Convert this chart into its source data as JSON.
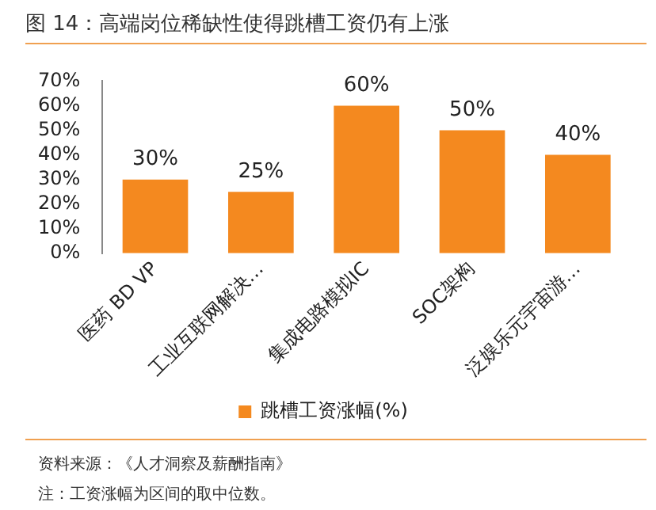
{
  "chart_data": {
    "type": "bar",
    "title": "图 14：高端岗位稀缺性使得跳槽工资仍有上涨",
    "categories": [
      "医药 BD VP",
      "工业互联网解决…",
      "集成电路模拟IC",
      "SOC架构",
      "泛娱乐元宇宙游…"
    ],
    "series": [
      {
        "name": "跳槽工资涨幅(%)",
        "color": "#f4891f",
        "values": [
          30,
          25,
          60,
          50,
          40
        ],
        "value_labels": [
          "30%",
          "25%",
          "60%",
          "50%",
          "40%"
        ]
      }
    ],
    "ylim": [
      0,
      70
    ],
    "yticks": [
      {
        "value": 0,
        "label": "0%"
      },
      {
        "value": 10,
        "label": "10%"
      },
      {
        "value": 20,
        "label": "20%"
      },
      {
        "value": 30,
        "label": "30%"
      },
      {
        "value": 40,
        "label": "40%"
      },
      {
        "value": 50,
        "label": "50%"
      },
      {
        "value": 60,
        "label": "60%"
      },
      {
        "value": 70,
        "label": "70%"
      }
    ],
    "grid": false,
    "legend": "bottom",
    "annotations": [
      "资料来源：《人才洞察及薪酬指南》",
      "注：工资涨幅为区间的取中位数。"
    ]
  }
}
